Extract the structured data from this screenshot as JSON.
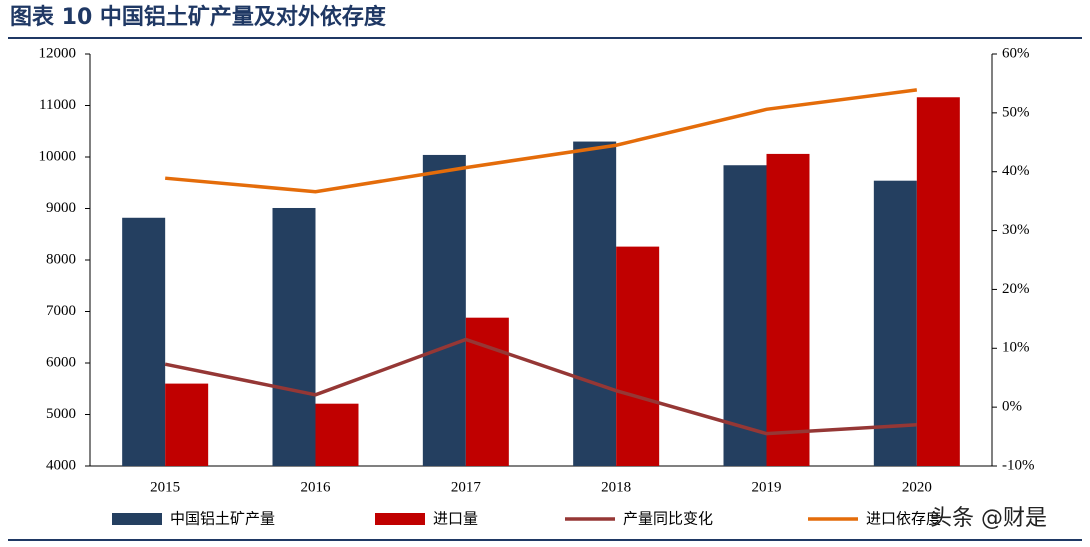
{
  "chart_data": {
    "type": "bar-line",
    "title": "图表 10  中国铝土矿产量及对外依存度",
    "categories": [
      "2015",
      "2016",
      "2017",
      "2018",
      "2019",
      "2020"
    ],
    "series": [
      {
        "name": "中国铝土矿产量",
        "type": "bar",
        "color": "#243f60",
        "values": [
          8820,
          9010,
          10040,
          10300,
          9840,
          9540
        ]
      },
      {
        "name": "进口量",
        "type": "bar",
        "color": "#c00000",
        "values": [
          5600,
          5210,
          6880,
          8260,
          10060,
          11160
        ]
      },
      {
        "name": "产量同比变化",
        "type": "line",
        "axis": "y2",
        "color": "#953735",
        "values": [
          7.3,
          2.1,
          11.5,
          2.8,
          -4.5,
          -3.0
        ]
      },
      {
        "name": "进口依存度",
        "type": "line",
        "axis": "y2",
        "color": "#e46c0a",
        "values": [
          38.9,
          36.6,
          40.7,
          44.5,
          50.6,
          53.9
        ]
      }
    ],
    "ylim": [
      4000,
      12000
    ],
    "yticks": [
      4000,
      5000,
      6000,
      7000,
      8000,
      9000,
      10000,
      11000,
      12000
    ],
    "y2lim": [
      -10,
      60
    ],
    "y2ticks": [
      {
        "value": -10,
        "label": "-10%"
      },
      {
        "value": 0,
        "label": "0%"
      },
      {
        "value": 10,
        "label": "10%"
      },
      {
        "value": 20,
        "label": "20%"
      },
      {
        "value": 30,
        "label": "30%"
      },
      {
        "value": 40,
        "label": "40%"
      },
      {
        "value": 50,
        "label": "50%"
      },
      {
        "value": 60,
        "label": "60%"
      }
    ],
    "grid": false,
    "legend": "bottom",
    "watermark": "头条 @财是"
  }
}
